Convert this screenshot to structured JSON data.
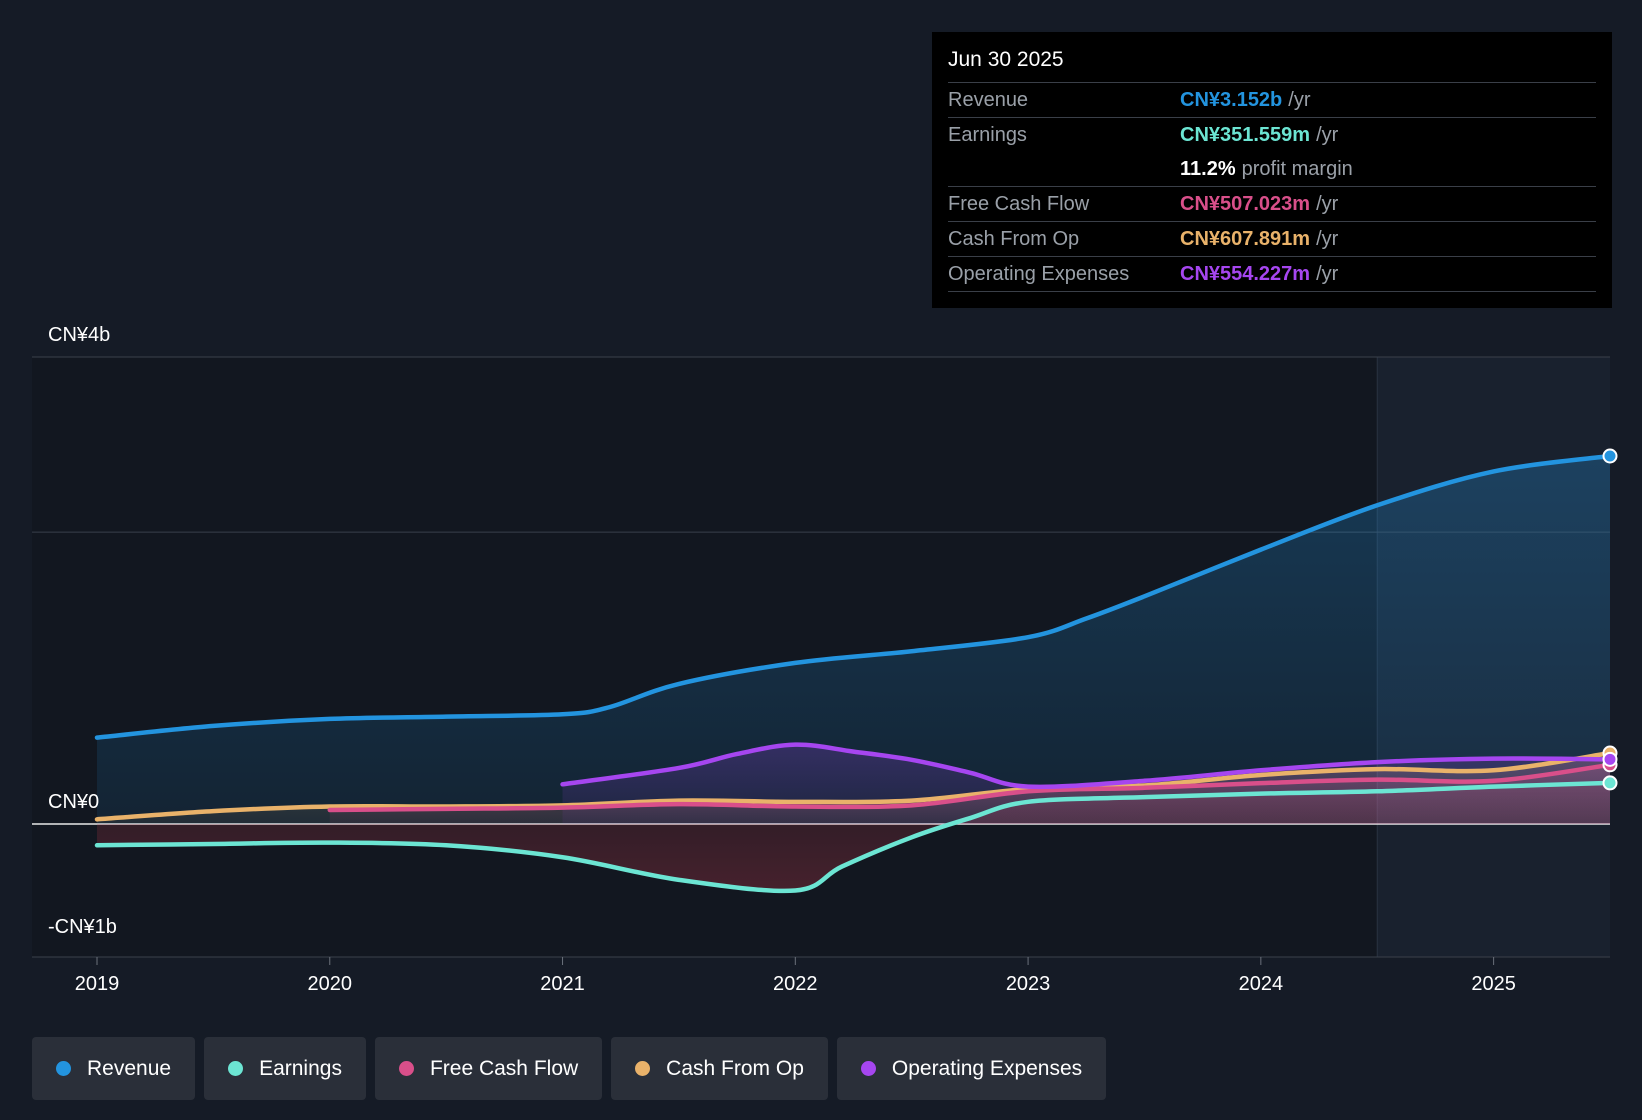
{
  "tooltip": {
    "date": "Jun 30 2025",
    "rows": [
      {
        "label": "Revenue",
        "value": "CN¥3.152b",
        "unit": "/yr",
        "color": "#2394df"
      },
      {
        "label": "Earnings",
        "value": "CN¥351.559m",
        "unit": "/yr",
        "color": "#6ce5d3"
      },
      {
        "label": "",
        "value": "11.2%",
        "unit": "profit margin",
        "color": "#ffffff"
      },
      {
        "label": "Free Cash Flow",
        "value": "CN¥507.023m",
        "unit": "/yr",
        "color": "#d94f8a"
      },
      {
        "label": "Cash From Op",
        "value": "CN¥607.891m",
        "unit": "/yr",
        "color": "#e9b26a"
      },
      {
        "label": "Operating Expenses",
        "value": "CN¥554.227m",
        "unit": "/yr",
        "color": "#a646f0"
      }
    ]
  },
  "legend": [
    {
      "label": "Revenue",
      "color": "#2394df"
    },
    {
      "label": "Earnings",
      "color": "#6ce5d3"
    },
    {
      "label": "Free Cash Flow",
      "color": "#d94f8a"
    },
    {
      "label": "Cash From Op",
      "color": "#e9b26a"
    },
    {
      "label": "Operating Expenses",
      "color": "#a646f0"
    }
  ],
  "chart_data": {
    "type": "area",
    "y_labels": [
      "CN¥4b",
      "CN¥0",
      "-CN¥1b"
    ],
    "ylim": [
      -1,
      4
    ],
    "gridlines": [
      4,
      2.5,
      0
    ],
    "x_ticks": [
      "2019",
      "2020",
      "2021",
      "2022",
      "2023",
      "2024",
      "2025"
    ],
    "xlim": [
      2019,
      2025.5
    ],
    "past_data_divider": 2024.5,
    "series": [
      {
        "name": "Revenue",
        "color": "#2394df",
        "x": [
          2019,
          2019.5,
          2020,
          2020.5,
          2021,
          2021.2,
          2021.5,
          2022,
          2022.5,
          2023,
          2023.25,
          2023.5,
          2024,
          2024.5,
          2025,
          2025.5
        ],
        "y": [
          0.74,
          0.84,
          0.9,
          0.92,
          0.94,
          1.0,
          1.2,
          1.38,
          1.48,
          1.6,
          1.76,
          1.95,
          2.35,
          2.73,
          3.02,
          3.152
        ]
      },
      {
        "name": "Earnings",
        "color": "#6ce5d3",
        "x": [
          2019,
          2019.5,
          2020,
          2020.5,
          2021,
          2021.5,
          2022,
          2022.2,
          2022.5,
          2022.75,
          2023,
          2023.5,
          2024,
          2024.5,
          2025,
          2025.5
        ],
        "y": [
          -0.16,
          -0.15,
          -0.14,
          -0.16,
          -0.25,
          -0.42,
          -0.5,
          -0.32,
          -0.1,
          0.05,
          0.19,
          0.23,
          0.26,
          0.28,
          0.32,
          0.352
        ]
      },
      {
        "name": "Free Cash Flow",
        "color": "#d94f8a",
        "x": [
          2020,
          2020.5,
          2021,
          2021.5,
          2022,
          2022.5,
          2023,
          2023.5,
          2024,
          2024.5,
          2025,
          2025.5
        ],
        "y": [
          0.12,
          0.13,
          0.14,
          0.17,
          0.15,
          0.16,
          0.28,
          0.31,
          0.35,
          0.38,
          0.37,
          0.507
        ]
      },
      {
        "name": "Cash From Op",
        "color": "#e9b26a",
        "x": [
          2019,
          2019.5,
          2020,
          2020.5,
          2021,
          2021.5,
          2022,
          2022.5,
          2023,
          2023.5,
          2024,
          2024.5,
          2025,
          2025.5
        ],
        "y": [
          0.04,
          0.11,
          0.15,
          0.15,
          0.16,
          0.2,
          0.19,
          0.2,
          0.3,
          0.33,
          0.42,
          0.47,
          0.46,
          0.608
        ]
      },
      {
        "name": "Operating Expenses",
        "color": "#a646f0",
        "x": [
          2021,
          2021.5,
          2021.75,
          2022,
          2022.25,
          2022.5,
          2022.75,
          2023,
          2023.5,
          2024,
          2024.5,
          2025,
          2025.5
        ],
        "y": [
          0.34,
          0.48,
          0.6,
          0.68,
          0.62,
          0.55,
          0.44,
          0.32,
          0.37,
          0.46,
          0.53,
          0.56,
          0.554
        ]
      }
    ]
  }
}
